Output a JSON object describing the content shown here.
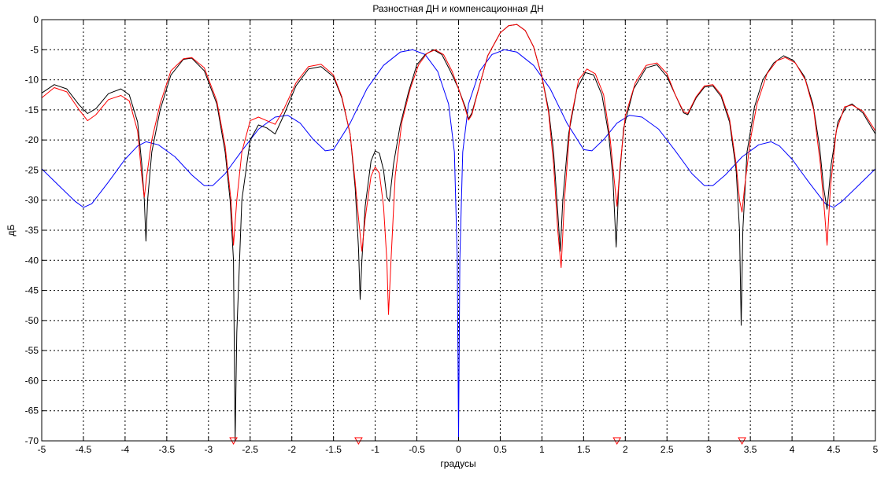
{
  "chart_data": {
    "type": "line",
    "title": "Разностная ДН и компенсационная ДН",
    "xlabel": "градусы",
    "ylabel": "дБ",
    "xlim": [
      -5,
      5
    ],
    "ylim": [
      -70,
      0
    ],
    "grid": true,
    "x_ticks": [
      "-5",
      "-4.5",
      "-4",
      "-3.5",
      "-3",
      "-2.5",
      "-2",
      "-1.5",
      "-1",
      "-0.5",
      "0",
      "0.5",
      "1",
      "1.5",
      "2",
      "2.5",
      "3",
      "3.5",
      "4",
      "4.5",
      "5"
    ],
    "y_ticks": [
      "0",
      "-5",
      "-10",
      "-15",
      "-20",
      "-25",
      "-30",
      "-35",
      "-40",
      "-45",
      "-50",
      "-55",
      "-60",
      "-65",
      "-70"
    ],
    "series": [
      {
        "color": "#0000ff",
        "points": [
          [
            -5.0,
            -24.8
          ],
          [
            -4.8,
            -27.5
          ],
          [
            -4.6,
            -30.2
          ],
          [
            -4.5,
            -31.2
          ],
          [
            -4.4,
            -30.6
          ],
          [
            -4.2,
            -27.0
          ],
          [
            -4.0,
            -23.2
          ],
          [
            -3.85,
            -21.0
          ],
          [
            -3.75,
            -20.3
          ],
          [
            -3.6,
            -20.8
          ],
          [
            -3.4,
            -22.8
          ],
          [
            -3.2,
            -25.8
          ],
          [
            -3.05,
            -27.6
          ],
          [
            -2.95,
            -27.6
          ],
          [
            -2.8,
            -25.6
          ],
          [
            -2.6,
            -21.8
          ],
          [
            -2.4,
            -18.2
          ],
          [
            -2.2,
            -16.2
          ],
          [
            -2.05,
            -15.9
          ],
          [
            -1.9,
            -17.2
          ],
          [
            -1.75,
            -19.8
          ],
          [
            -1.6,
            -21.8
          ],
          [
            -1.5,
            -21.6
          ],
          [
            -1.3,
            -17.2
          ],
          [
            -1.1,
            -11.5
          ],
          [
            -0.9,
            -7.6
          ],
          [
            -0.7,
            -5.4
          ],
          [
            -0.55,
            -5.0
          ],
          [
            -0.4,
            -5.8
          ],
          [
            -0.25,
            -8.6
          ],
          [
            -0.12,
            -14.0
          ],
          [
            -0.05,
            -22.0
          ],
          [
            -0.015,
            -40.0
          ],
          [
            0.0,
            -70.0
          ],
          [
            0.015,
            -40.0
          ],
          [
            0.05,
            -22.0
          ],
          [
            0.12,
            -14.0
          ],
          [
            0.25,
            -8.6
          ],
          [
            0.4,
            -5.8
          ],
          [
            0.55,
            -5.0
          ],
          [
            0.7,
            -5.4
          ],
          [
            0.9,
            -7.6
          ],
          [
            1.1,
            -11.5
          ],
          [
            1.3,
            -17.2
          ],
          [
            1.5,
            -21.6
          ],
          [
            1.6,
            -21.8
          ],
          [
            1.75,
            -19.8
          ],
          [
            1.9,
            -17.2
          ],
          [
            2.05,
            -15.9
          ],
          [
            2.2,
            -16.2
          ],
          [
            2.4,
            -18.2
          ],
          [
            2.6,
            -21.8
          ],
          [
            2.8,
            -25.6
          ],
          [
            2.95,
            -27.6
          ],
          [
            3.05,
            -27.6
          ],
          [
            3.2,
            -25.8
          ],
          [
            3.4,
            -22.8
          ],
          [
            3.6,
            -20.8
          ],
          [
            3.75,
            -20.3
          ],
          [
            3.85,
            -21.0
          ],
          [
            4.0,
            -23.2
          ],
          [
            4.2,
            -27.0
          ],
          [
            4.4,
            -30.6
          ],
          [
            4.5,
            -31.2
          ],
          [
            4.6,
            -30.2
          ],
          [
            4.8,
            -27.5
          ],
          [
            5.0,
            -24.8
          ]
        ]
      },
      {
        "color": "#000000",
        "points": [
          [
            -5.0,
            -12.2
          ],
          [
            -4.85,
            -10.8
          ],
          [
            -4.7,
            -11.5
          ],
          [
            -4.55,
            -14.2
          ],
          [
            -4.45,
            -15.6
          ],
          [
            -4.35,
            -14.8
          ],
          [
            -4.2,
            -12.3
          ],
          [
            -4.05,
            -11.5
          ],
          [
            -3.95,
            -12.5
          ],
          [
            -3.85,
            -17.0
          ],
          [
            -3.8,
            -24.0
          ],
          [
            -3.77,
            -30.0
          ],
          [
            -3.75,
            -36.8
          ],
          [
            -3.73,
            -30.0
          ],
          [
            -3.68,
            -22.0
          ],
          [
            -3.58,
            -15.0
          ],
          [
            -3.45,
            -9.2
          ],
          [
            -3.3,
            -6.6
          ],
          [
            -3.2,
            -6.4
          ],
          [
            -3.05,
            -8.5
          ],
          [
            -2.9,
            -14.0
          ],
          [
            -2.8,
            -22.0
          ],
          [
            -2.74,
            -30.0
          ],
          [
            -2.7,
            -40.0
          ],
          [
            -2.68,
            -70.0
          ],
          [
            -2.66,
            -52.0
          ],
          [
            -2.6,
            -30.0
          ],
          [
            -2.5,
            -20.0
          ],
          [
            -2.4,
            -17.5
          ],
          [
            -2.3,
            -18.0
          ],
          [
            -2.2,
            -19.0
          ],
          [
            -2.1,
            -16.0
          ],
          [
            -1.95,
            -11.0
          ],
          [
            -1.8,
            -8.2
          ],
          [
            -1.65,
            -7.8
          ],
          [
            -1.5,
            -9.5
          ],
          [
            -1.4,
            -13.0
          ],
          [
            -1.3,
            -19.0
          ],
          [
            -1.24,
            -28.0
          ],
          [
            -1.2,
            -38.0
          ],
          [
            -1.18,
            -46.5
          ],
          [
            -1.16,
            -40.0
          ],
          [
            -1.12,
            -31.0
          ],
          [
            -1.05,
            -23.5
          ],
          [
            -1.0,
            -21.8
          ],
          [
            -0.95,
            -22.2
          ],
          [
            -0.9,
            -25.0
          ],
          [
            -0.86,
            -29.5
          ],
          [
            -0.83,
            -30.2
          ],
          [
            -0.78,
            -24.0
          ],
          [
            -0.7,
            -17.5
          ],
          [
            -0.6,
            -12.0
          ],
          [
            -0.5,
            -7.5
          ],
          [
            -0.4,
            -5.8
          ],
          [
            -0.3,
            -5.0
          ],
          [
            -0.2,
            -5.8
          ],
          [
            -0.1,
            -8.5
          ],
          [
            0.0,
            -11.5
          ],
          [
            0.08,
            -14.5
          ],
          [
            0.12,
            -16.5
          ],
          [
            0.16,
            -15.5
          ],
          [
            0.25,
            -11.0
          ],
          [
            0.35,
            -6.0
          ],
          [
            0.5,
            -2.2
          ],
          [
            0.6,
            -1.0
          ],
          [
            0.7,
            -0.8
          ],
          [
            0.8,
            -1.8
          ],
          [
            0.9,
            -4.5
          ],
          [
            1.0,
            -9.5
          ],
          [
            1.08,
            -15.0
          ],
          [
            1.14,
            -22.0
          ],
          [
            1.19,
            -32.0
          ],
          [
            1.22,
            -38.5
          ],
          [
            1.25,
            -30.0
          ],
          [
            1.32,
            -19.0
          ],
          [
            1.42,
            -11.5
          ],
          [
            1.52,
            -8.8
          ],
          [
            1.62,
            -9.2
          ],
          [
            1.72,
            -12.5
          ],
          [
            1.8,
            -19.0
          ],
          [
            1.85,
            -26.0
          ],
          [
            1.89,
            -37.8
          ],
          [
            1.92,
            -28.0
          ],
          [
            1.98,
            -18.0
          ],
          [
            2.1,
            -11.5
          ],
          [
            2.25,
            -8.0
          ],
          [
            2.38,
            -7.5
          ],
          [
            2.5,
            -9.5
          ],
          [
            2.6,
            -12.5
          ],
          [
            2.7,
            -15.5
          ],
          [
            2.75,
            -15.8
          ],
          [
            2.85,
            -13.0
          ],
          [
            2.95,
            -11.2
          ],
          [
            3.05,
            -11.0
          ],
          [
            3.15,
            -12.8
          ],
          [
            3.25,
            -17.0
          ],
          [
            3.33,
            -25.0
          ],
          [
            3.37,
            -35.0
          ],
          [
            3.39,
            -50.8
          ],
          [
            3.41,
            -35.0
          ],
          [
            3.46,
            -22.0
          ],
          [
            3.55,
            -14.5
          ],
          [
            3.65,
            -10.0
          ],
          [
            3.78,
            -7.2
          ],
          [
            3.9,
            -6.0
          ],
          [
            4.02,
            -6.8
          ],
          [
            4.15,
            -9.5
          ],
          [
            4.25,
            -14.0
          ],
          [
            4.33,
            -21.0
          ],
          [
            4.38,
            -28.0
          ],
          [
            4.42,
            -31.5
          ],
          [
            4.47,
            -24.0
          ],
          [
            4.55,
            -17.0
          ],
          [
            4.65,
            -14.5
          ],
          [
            4.72,
            -14.0
          ],
          [
            4.85,
            -15.5
          ],
          [
            5.0,
            -19.0
          ]
        ]
      },
      {
        "color": "#ff0000",
        "points": [
          [
            -5.0,
            -13.0
          ],
          [
            -4.85,
            -11.3
          ],
          [
            -4.7,
            -12.0
          ],
          [
            -4.55,
            -15.0
          ],
          [
            -4.45,
            -16.8
          ],
          [
            -4.35,
            -15.8
          ],
          [
            -4.2,
            -13.3
          ],
          [
            -4.05,
            -12.6
          ],
          [
            -3.95,
            -13.5
          ],
          [
            -3.85,
            -18.5
          ],
          [
            -3.8,
            -26.0
          ],
          [
            -3.77,
            -29.5
          ],
          [
            -3.74,
            -26.0
          ],
          [
            -3.68,
            -20.0
          ],
          [
            -3.58,
            -14.0
          ],
          [
            -3.45,
            -8.5
          ],
          [
            -3.3,
            -6.5
          ],
          [
            -3.2,
            -6.3
          ],
          [
            -3.05,
            -8.0
          ],
          [
            -2.9,
            -13.5
          ],
          [
            -2.8,
            -21.0
          ],
          [
            -2.73,
            -30.0
          ],
          [
            -2.7,
            -37.5
          ],
          [
            -2.66,
            -30.0
          ],
          [
            -2.6,
            -22.0
          ],
          [
            -2.5,
            -16.8
          ],
          [
            -2.4,
            -16.2
          ],
          [
            -2.3,
            -16.8
          ],
          [
            -2.2,
            -17.4
          ],
          [
            -2.1,
            -15.0
          ],
          [
            -1.95,
            -10.5
          ],
          [
            -1.8,
            -7.8
          ],
          [
            -1.65,
            -7.4
          ],
          [
            -1.5,
            -9.2
          ],
          [
            -1.4,
            -12.8
          ],
          [
            -1.3,
            -19.0
          ],
          [
            -1.24,
            -27.0
          ],
          [
            -1.2,
            -33.0
          ],
          [
            -1.16,
            -38.5
          ],
          [
            -1.12,
            -33.0
          ],
          [
            -1.05,
            -26.0
          ],
          [
            -1.0,
            -24.5
          ],
          [
            -0.95,
            -25.5
          ],
          [
            -0.9,
            -31.0
          ],
          [
            -0.86,
            -40.0
          ],
          [
            -0.84,
            -49.0
          ],
          [
            -0.81,
            -40.0
          ],
          [
            -0.76,
            -26.0
          ],
          [
            -0.68,
            -17.0
          ],
          [
            -0.58,
            -11.5
          ],
          [
            -0.48,
            -7.5
          ],
          [
            -0.38,
            -5.6
          ],
          [
            -0.28,
            -5.0
          ],
          [
            -0.18,
            -5.8
          ],
          [
            -0.08,
            -8.5
          ],
          [
            0.0,
            -11.5
          ],
          [
            0.08,
            -14.8
          ],
          [
            0.12,
            -16.7
          ],
          [
            0.16,
            -15.8
          ],
          [
            0.25,
            -11.0
          ],
          [
            0.35,
            -6.0
          ],
          [
            0.5,
            -2.2
          ],
          [
            0.6,
            -1.0
          ],
          [
            0.7,
            -0.8
          ],
          [
            0.8,
            -1.8
          ],
          [
            0.9,
            -4.5
          ],
          [
            1.0,
            -9.5
          ],
          [
            1.08,
            -15.5
          ],
          [
            1.14,
            -24.0
          ],
          [
            1.19,
            -35.0
          ],
          [
            1.23,
            -41.2
          ],
          [
            1.27,
            -30.0
          ],
          [
            1.34,
            -17.0
          ],
          [
            1.44,
            -10.0
          ],
          [
            1.54,
            -8.2
          ],
          [
            1.64,
            -9.0
          ],
          [
            1.74,
            -12.5
          ],
          [
            1.82,
            -20.0
          ],
          [
            1.87,
            -27.0
          ],
          [
            1.9,
            -31.0
          ],
          [
            1.94,
            -24.0
          ],
          [
            2.0,
            -16.0
          ],
          [
            2.12,
            -10.5
          ],
          [
            2.25,
            -7.6
          ],
          [
            2.38,
            -7.2
          ],
          [
            2.5,
            -9.0
          ],
          [
            2.6,
            -12.5
          ],
          [
            2.7,
            -15.3
          ],
          [
            2.75,
            -15.6
          ],
          [
            2.85,
            -12.8
          ],
          [
            2.95,
            -11.0
          ],
          [
            3.05,
            -10.8
          ],
          [
            3.15,
            -12.5
          ],
          [
            3.25,
            -16.5
          ],
          [
            3.33,
            -24.0
          ],
          [
            3.37,
            -30.0
          ],
          [
            3.4,
            -32.0
          ],
          [
            3.43,
            -28.0
          ],
          [
            3.5,
            -20.0
          ],
          [
            3.58,
            -14.0
          ],
          [
            3.7,
            -9.0
          ],
          [
            3.82,
            -6.8
          ],
          [
            3.92,
            -6.3
          ],
          [
            4.04,
            -7.2
          ],
          [
            4.16,
            -10.0
          ],
          [
            4.26,
            -15.0
          ],
          [
            4.34,
            -24.0
          ],
          [
            4.39,
            -32.0
          ],
          [
            4.42,
            -37.5
          ],
          [
            4.46,
            -28.0
          ],
          [
            4.53,
            -18.5
          ],
          [
            4.63,
            -14.5
          ],
          [
            4.72,
            -14.2
          ],
          [
            4.85,
            -15.2
          ],
          [
            5.0,
            -18.5
          ]
        ]
      }
    ],
    "markers": {
      "shape": "triangle-down",
      "color": "#ff0000",
      "x": [
        -2.7,
        -1.2,
        1.9,
        3.4
      ],
      "y": -70
    }
  }
}
